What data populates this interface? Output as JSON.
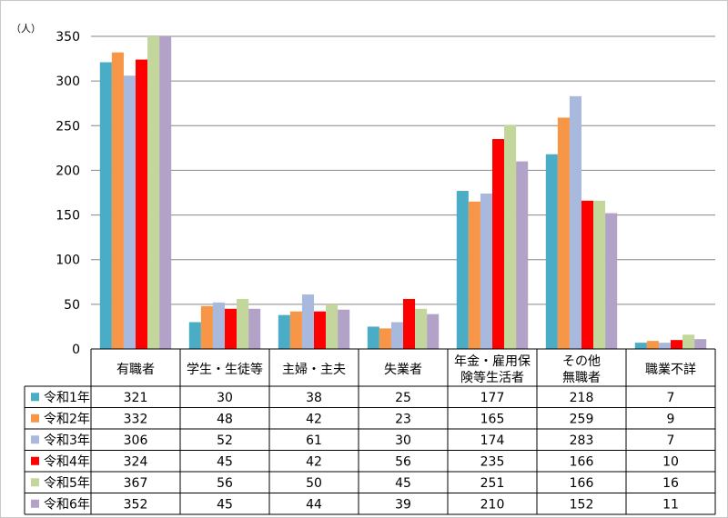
{
  "chart_data": {
    "type": "bar",
    "unit_label": "（人）",
    "ylim": [
      0,
      350
    ],
    "yticks": [
      0,
      50,
      100,
      150,
      200,
      250,
      300,
      350
    ],
    "grid": true,
    "legend": "table-left",
    "categories": [
      [
        "有職者"
      ],
      [
        "学生・生徒等"
      ],
      [
        "主婦・主夫"
      ],
      [
        "失業者"
      ],
      [
        "年金・雇用保",
        "険等生活者"
      ],
      [
        "その他",
        "無職者"
      ],
      [
        "職業不詳"
      ]
    ],
    "series": [
      {
        "name": "令和1年",
        "color": "#4bacc6",
        "values": [
          321,
          30,
          38,
          25,
          177,
          218,
          7
        ]
      },
      {
        "name": "令和2年",
        "color": "#f79646",
        "values": [
          332,
          48,
          42,
          23,
          165,
          259,
          9
        ]
      },
      {
        "name": "令和3年",
        "color": "#a9b8dd",
        "values": [
          306,
          52,
          61,
          30,
          174,
          283,
          7
        ]
      },
      {
        "name": "令和4年",
        "color": "#ff0000",
        "values": [
          324,
          45,
          42,
          56,
          235,
          166,
          10
        ]
      },
      {
        "name": "令和5年",
        "color": "#c3d69b",
        "values": [
          367,
          56,
          50,
          45,
          251,
          166,
          16
        ]
      },
      {
        "name": "令和6年",
        "color": "#b3a2c7",
        "values": [
          352,
          45,
          44,
          39,
          210,
          152,
          11
        ]
      }
    ]
  }
}
